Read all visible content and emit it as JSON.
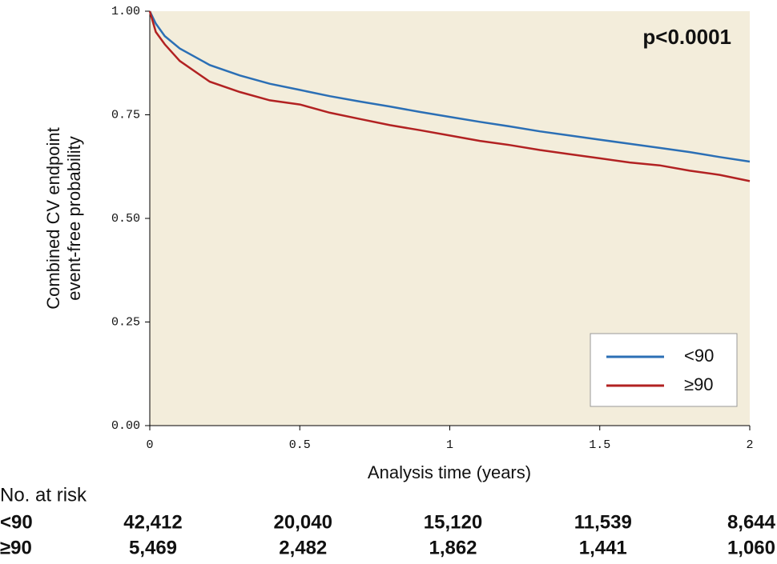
{
  "chart_data": {
    "type": "line",
    "ylabel": [
      "Combined CV endpoint",
      "event-free probability"
    ],
    "xlabel": "Analysis time (years)",
    "annotation": "p<0.0001",
    "x": [
      0,
      0.02,
      0.05,
      0.1,
      0.2,
      0.3,
      0.4,
      0.5,
      0.6,
      0.7,
      0.8,
      0.9,
      1.0,
      1.1,
      1.2,
      1.3,
      1.4,
      1.5,
      1.6,
      1.7,
      1.8,
      1.9,
      2.0
    ],
    "series": [
      {
        "name": "<90",
        "color": "#2b6fb5",
        "values": [
          1.0,
          0.97,
          0.94,
          0.91,
          0.87,
          0.845,
          0.825,
          0.81,
          0.795,
          0.782,
          0.77,
          0.757,
          0.745,
          0.733,
          0.722,
          0.71,
          0.7,
          0.69,
          0.68,
          0.67,
          0.66,
          0.648,
          0.637
        ]
      },
      {
        "name": "≥90",
        "color": "#b22222",
        "values": [
          1.0,
          0.95,
          0.92,
          0.88,
          0.83,
          0.805,
          0.785,
          0.775,
          0.755,
          0.74,
          0.725,
          0.713,
          0.7,
          0.687,
          0.677,
          0.665,
          0.655,
          0.645,
          0.635,
          0.628,
          0.615,
          0.605,
          0.59
        ]
      }
    ],
    "xlim": [
      0,
      2
    ],
    "xticks": [
      0,
      0.5,
      1,
      1.5,
      2
    ],
    "ylim": [
      0,
      1
    ],
    "yticks": [
      {
        "value": 0,
        "label": "0.00"
      },
      {
        "value": 0.25,
        "label": "0.25"
      },
      {
        "value": 0.5,
        "label": "0.50"
      },
      {
        "value": 0.75,
        "label": "0.75"
      },
      {
        "value": 1,
        "label": "1.00"
      }
    ],
    "legend": "lower right",
    "risk_table": {
      "title": "No. at risk",
      "rows": [
        {
          "name": "<90",
          "color": "#2b6fb5",
          "values": [
            42412,
            20040,
            15120,
            11539,
            8644
          ],
          "value_labels": [
            "42,412",
            "20,040",
            "15,120",
            "11,539",
            "8,644"
          ]
        },
        {
          "name": "≥90",
          "color": "#b22222",
          "values": [
            5469,
            2482,
            1862,
            1441,
            1060
          ],
          "value_labels": [
            "5,469",
            "2,482",
            "1,862",
            "1,441",
            "1,060"
          ]
        }
      ]
    }
  }
}
